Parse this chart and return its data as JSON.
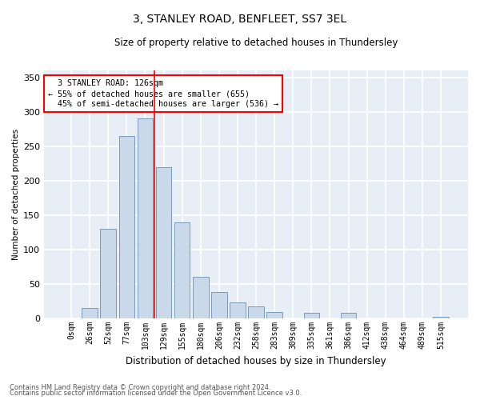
{
  "title_line1": "3, STANLEY ROAD, BENFLEET, SS7 3EL",
  "title_line2": "Size of property relative to detached houses in Thundersley",
  "xlabel": "Distribution of detached houses by size in Thundersley",
  "ylabel": "Number of detached properties",
  "bar_color": "#c9d9ea",
  "bar_edge_color": "#7799bb",
  "background_color": "#e8eef5",
  "grid_color": "#ffffff",
  "categories": [
    "0sqm",
    "26sqm",
    "52sqm",
    "77sqm",
    "103sqm",
    "129sqm",
    "155sqm",
    "180sqm",
    "206sqm",
    "232sqm",
    "258sqm",
    "283sqm",
    "309sqm",
    "335sqm",
    "361sqm",
    "386sqm",
    "412sqm",
    "438sqm",
    "464sqm",
    "489sqm",
    "515sqm"
  ],
  "values": [
    0,
    15,
    130,
    265,
    290,
    220,
    140,
    60,
    38,
    23,
    17,
    9,
    0,
    8,
    0,
    8,
    0,
    0,
    0,
    0,
    2
  ],
  "ylim": [
    0,
    360
  ],
  "yticks": [
    0,
    50,
    100,
    150,
    200,
    250,
    300,
    350
  ],
  "red_line_x": 4.5,
  "marker_label": "3 STANLEY ROAD: 126sqm",
  "pct_smaller": "55% of detached houses are smaller (655)",
  "pct_larger": "45% of semi-detached houses are larger (536)",
  "footer1": "Contains HM Land Registry data © Crown copyright and database right 2024.",
  "footer2": "Contains public sector information licensed under the Open Government Licence v3.0."
}
